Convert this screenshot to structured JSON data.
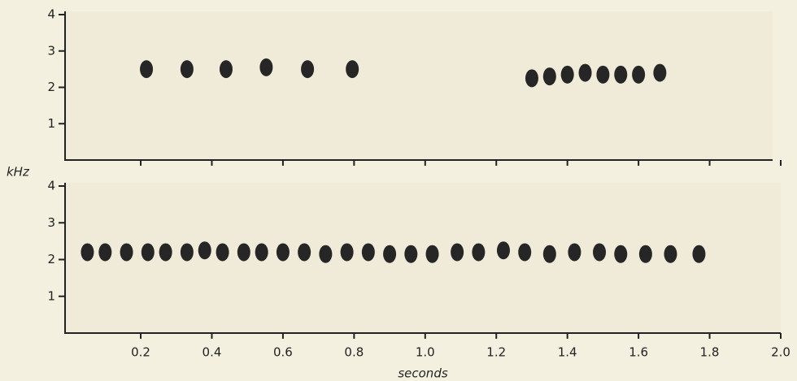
{
  "chart_data": [
    {
      "type": "scatter",
      "color": "#262626",
      "x": [
        0.216,
        0.33,
        0.44,
        0.553,
        0.669,
        0.795,
        1.3,
        1.35,
        1.4,
        1.45,
        1.5,
        1.55,
        1.6,
        1.66
      ],
      "values": [
        2.5,
        2.5,
        2.5,
        2.55,
        2.5,
        2.5,
        2.25,
        2.3,
        2.35,
        2.4,
        2.35,
        2.35,
        2.35,
        2.4
      ],
      "xlim": [
        0,
        2
      ],
      "xticks": [
        0.2,
        0.4,
        0.6,
        0.8,
        1,
        1.2,
        1.4,
        1.6,
        1.8,
        2
      ],
      "xtick_labels": false,
      "ylim": [
        0,
        4
      ],
      "yticks": [
        1,
        2,
        3,
        4
      ]
    },
    {
      "type": "scatter",
      "color": "#262626",
      "y_label": "kHz",
      "x_label": "seconds",
      "x": [
        0.05,
        0.1,
        0.16,
        0.22,
        0.27,
        0.33,
        0.38,
        0.43,
        0.49,
        0.54,
        0.6,
        0.66,
        0.72,
        0.78,
        0.84,
        0.9,
        0.96,
        1.02,
        1.09,
        1.15,
        1.22,
        1.28,
        1.35,
        1.42,
        1.49,
        1.55,
        1.62,
        1.69,
        1.77
      ],
      "values": [
        2.2,
        2.2,
        2.2,
        2.2,
        2.2,
        2.2,
        2.25,
        2.2,
        2.2,
        2.2,
        2.2,
        2.2,
        2.15,
        2.2,
        2.2,
        2.15,
        2.15,
        2.15,
        2.2,
        2.2,
        2.25,
        2.2,
        2.15,
        2.2,
        2.2,
        2.15,
        2.15,
        2.15,
        2.15
      ],
      "xlim": [
        0,
        2
      ],
      "xticks": [
        0.2,
        0.4,
        0.6,
        0.8,
        {
          "value": 1,
          "label": "1.0"
        },
        1.2,
        1.4,
        1.6,
        1.8,
        {
          "value": 2,
          "label": "2.0"
        }
      ],
      "xtick_labels": true,
      "ylim": [
        0,
        4
      ],
      "yticks": [
        1,
        2,
        3,
        4
      ]
    }
  ]
}
